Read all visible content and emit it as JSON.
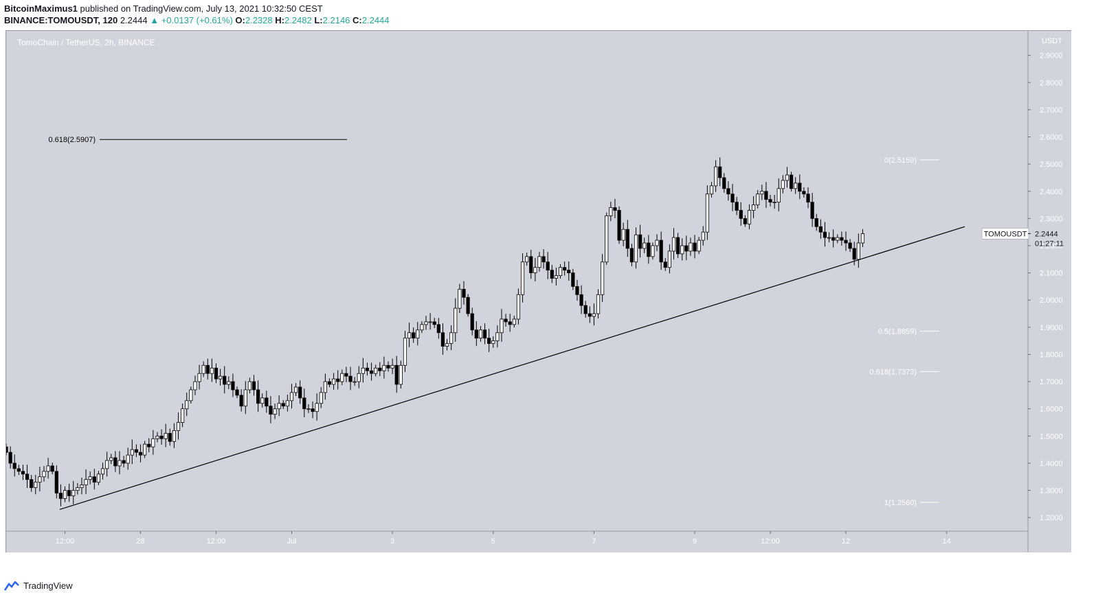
{
  "header": {
    "author": "BitcoinMaximus1",
    "published": "published on TradingView.com, July 13, 2021 10:32:50 CEST",
    "symbol": "BINANCE:TOMOUSDT, 120",
    "last": "2.2444",
    "change": "+0.0137 (+0.61%)",
    "o_label": "O:",
    "o": "2.2328",
    "h_label": "H:",
    "h": "2.2482",
    "l_label": "L:",
    "l": "2.2146",
    "c_label": "C:",
    "c": "2.2444"
  },
  "chart_title": "TomoChain / TetherUS, 2h, BINANCE",
  "footer": {
    "brand": "TradingView"
  },
  "colors": {
    "background": "#d1d4dc",
    "up": "#ffffff",
    "down": "#000000",
    "accent": "#26a69a"
  },
  "chart_data": {
    "type": "candlestick",
    "interval": "2h",
    "ylim": [
      1.15,
      2.99
    ],
    "price_unit": "USDT",
    "y_ticks": [
      "1.2000",
      "1.3000",
      "1.4000",
      "1.5000",
      "1.6000",
      "1.7000",
      "1.8000",
      "1.9000",
      "2.0000",
      "2.1000",
      "2.2000",
      "2.3000",
      "2.4000",
      "2.5000",
      "2.6000",
      "2.7000",
      "2.8000",
      "2.9000"
    ],
    "x_ticks": [
      {
        "label": "12:00",
        "t": 7
      },
      {
        "label": "28",
        "t": 16
      },
      {
        "label": "12:00",
        "t": 25
      },
      {
        "label": "Jul",
        "t": 34
      },
      {
        "label": "3",
        "t": 46
      },
      {
        "label": "5",
        "t": 58
      },
      {
        "label": "7",
        "t": 70
      },
      {
        "label": "9",
        "t": 82
      },
      {
        "label": "12:00",
        "t": 91
      },
      {
        "label": "12",
        "t": 100
      },
      {
        "label": "14",
        "t": 112
      }
    ],
    "closes": [
      1.44,
      1.4,
      1.38,
      1.37,
      1.36,
      1.34,
      1.31,
      1.33,
      1.35,
      1.37,
      1.39,
      1.37,
      1.29,
      1.27,
      1.3,
      1.28,
      1.3,
      1.31,
      1.32,
      1.34,
      1.35,
      1.33,
      1.36,
      1.38,
      1.41,
      1.42,
      1.39,
      1.41,
      1.4,
      1.43,
      1.45,
      1.44,
      1.43,
      1.47,
      1.46,
      1.49,
      1.5,
      1.49,
      1.51,
      1.48,
      1.52,
      1.55,
      1.6,
      1.63,
      1.67,
      1.7,
      1.73,
      1.76,
      1.73,
      1.75,
      1.71,
      1.72,
      1.69,
      1.7,
      1.67,
      1.65,
      1.61,
      1.67,
      1.7,
      1.67,
      1.62,
      1.64,
      1.61,
      1.58,
      1.6,
      1.62,
      1.61,
      1.63,
      1.66,
      1.68,
      1.64,
      1.6,
      1.6,
      1.59,
      1.62,
      1.66,
      1.7,
      1.69,
      1.71,
      1.7,
      1.73,
      1.72,
      1.7,
      1.7,
      1.73,
      1.75,
      1.74,
      1.73,
      1.75,
      1.74,
      1.76,
      1.75,
      1.76,
      1.69,
      1.76,
      1.86,
      1.88,
      1.86,
      1.89,
      1.91,
      1.92,
      1.92,
      1.91,
      1.88,
      1.83,
      1.84,
      1.88,
      1.97,
      2.04,
      2.01,
      1.95,
      1.89,
      1.86,
      1.89,
      1.86,
      1.84,
      1.85,
      1.88,
      1.93,
      1.92,
      1.91,
      1.93,
      2.02,
      2.14,
      2.16,
      2.1,
      2.12,
      2.16,
      2.14,
      2.11,
      2.08,
      2.09,
      2.12,
      2.11,
      2.1,
      2.05,
      2.02,
      1.98,
      1.95,
      1.94,
      1.95,
      2.02,
      2.14,
      2.31,
      2.34,
      2.33,
      2.22,
      2.26,
      2.19,
      2.14,
      2.24,
      2.19,
      2.21,
      2.16,
      2.2,
      2.22,
      2.14,
      2.12,
      2.18,
      2.23,
      2.17,
      2.2,
      2.18,
      2.21,
      2.18,
      2.22,
      2.25,
      2.39,
      2.42,
      2.49,
      2.45,
      2.41,
      2.39,
      2.36,
      2.33,
      2.3,
      2.28,
      2.33,
      2.35,
      2.39,
      2.4,
      2.37,
      2.36,
      2.36,
      2.41,
      2.44,
      2.46,
      2.41,
      2.43,
      2.4,
      2.39,
      2.36,
      2.3,
      2.27,
      2.25,
      2.23,
      2.23,
      2.22,
      2.23,
      2.22,
      2.21,
      2.19,
      2.15,
      2.21,
      2.244
    ]
  },
  "annotations": {
    "fib_left": "0.618(2.5907)",
    "fib_0": "0(2.5159)",
    "fib_05": "0.5(1.8859)",
    "fib_0618": "0.618(1.7373)",
    "fib_1": "1(1.2560)",
    "symbol_badge": "TOMOUSDT",
    "last_price_label": "2.2444",
    "countdown": "01:27:11"
  }
}
